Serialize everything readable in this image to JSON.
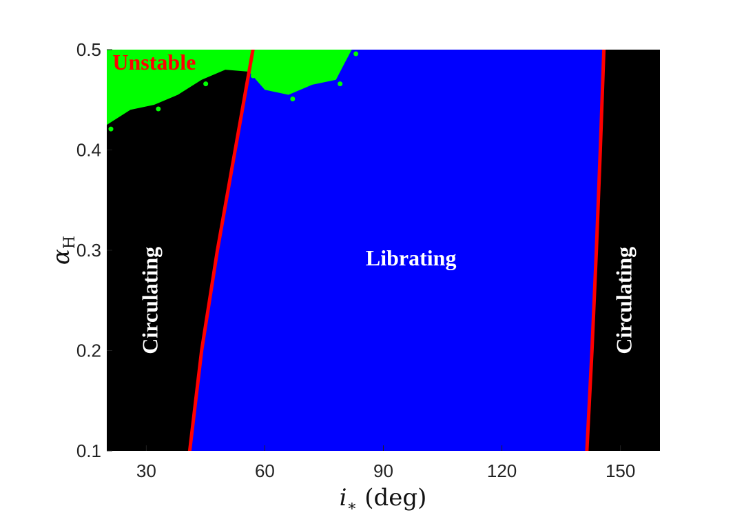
{
  "chart_data": {
    "type": "heatmap",
    "title": "",
    "xlabel": "i∗ (deg)",
    "ylabel": "αH",
    "xlim": [
      20,
      160
    ],
    "ylim": [
      0.1,
      0.5
    ],
    "xticks": [
      30,
      60,
      90,
      120,
      150
    ],
    "yticks": [
      0.1,
      0.2,
      0.3,
      0.4,
      0.5
    ],
    "grid": false,
    "colors": {
      "circulating": "#000000",
      "librating": "#0000ff",
      "unstable": "#00ff00",
      "boundary": "#ff0000",
      "unstable_label": "#ff0000",
      "label": "#ffffff"
    },
    "regions": [
      {
        "name": "Circulating",
        "x_range": [
          20,
          57
        ],
        "y_range": [
          0.1,
          0.5
        ]
      },
      {
        "name": "Librating",
        "x_range": [
          41,
          145
        ],
        "y_range": [
          0.1,
          0.5
        ]
      },
      {
        "name": "Circulating",
        "x_range": [
          141,
          160
        ],
        "y_range": [
          0.1,
          0.5
        ]
      },
      {
        "name": "Unstable",
        "x_range": [
          20,
          82
        ],
        "y_range": [
          0.43,
          0.5
        ]
      }
    ],
    "boundaries": [
      {
        "points": [
          [
            41.0,
            0.1
          ],
          [
            44.0,
            0.2
          ],
          [
            48.0,
            0.3
          ],
          [
            52.5,
            0.4
          ],
          [
            57.0,
            0.5
          ]
        ]
      },
      {
        "points": [
          [
            141.5,
            0.1
          ],
          [
            142.8,
            0.2
          ],
          [
            143.9,
            0.3
          ],
          [
            144.9,
            0.4
          ],
          [
            145.8,
            0.5
          ]
        ]
      }
    ],
    "unstable_edge": [
      [
        20,
        0.425
      ],
      [
        26,
        0.44
      ],
      [
        32,
        0.445
      ],
      [
        38,
        0.455
      ],
      [
        44,
        0.47
      ],
      [
        50,
        0.48
      ],
      [
        56,
        0.478
      ],
      [
        60,
        0.46
      ],
      [
        66,
        0.455
      ],
      [
        72,
        0.465
      ],
      [
        78,
        0.47
      ],
      [
        80,
        0.485
      ],
      [
        82,
        0.5
      ]
    ],
    "annotations": [
      {
        "text": "Unstable",
        "x": 32,
        "y": 0.485,
        "rotation": 0,
        "color_key": "unstable_label"
      },
      {
        "text": "Circulating",
        "x": 31.5,
        "y": 0.25,
        "rotation": -90,
        "color_key": "label"
      },
      {
        "text": "Librating",
        "x": 97,
        "y": 0.29,
        "rotation": 0,
        "color_key": "label"
      },
      {
        "text": "Circulating",
        "x": 151.5,
        "y": 0.25,
        "rotation": -90,
        "color_key": "label"
      }
    ]
  }
}
